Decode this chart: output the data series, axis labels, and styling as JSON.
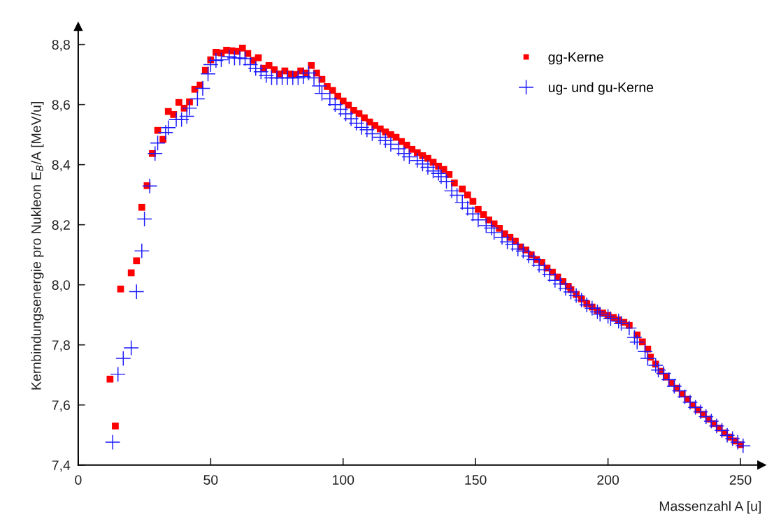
{
  "chart_data": {
    "type": "scatter",
    "xlabel": "Massenzahl A [u]",
    "ylabel": "Kernbindungsenergie pro Nukleon E$_{B}$/A [MeV/u]",
    "xlim": [
      0,
      258
    ],
    "ylim": [
      7.4,
      8.86
    ],
    "xticks": [
      0,
      50,
      100,
      150,
      200,
      250
    ],
    "yticks": [
      {
        "value": 7.4,
        "label": "7,4"
      },
      {
        "value": 7.6,
        "label": "7,6"
      },
      {
        "value": 7.8,
        "label": "7,8"
      },
      {
        "value": 8.0,
        "label": "8,0"
      },
      {
        "value": 8.2,
        "label": "8,2"
      },
      {
        "value": 8.4,
        "label": "8,4"
      },
      {
        "value": 8.6,
        "label": "8,6"
      },
      {
        "value": 8.8,
        "label": "8,8"
      }
    ],
    "grid": false,
    "legend": "top right",
    "series": [
      {
        "name": "gg-Kerne",
        "color": "#ff0000",
        "marker": "square",
        "x": [
          12,
          14,
          16,
          20,
          22,
          24,
          26,
          28,
          30,
          32,
          34,
          36,
          38,
          40,
          42,
          44,
          46,
          48,
          50,
          52,
          54,
          56,
          58,
          60,
          62,
          64,
          66,
          68,
          70,
          72,
          74,
          76,
          78,
          80,
          82,
          84,
          86,
          88,
          90,
          92,
          94,
          96,
          98,
          100,
          102,
          104,
          106,
          108,
          110,
          112,
          114,
          116,
          118,
          120,
          122,
          124,
          126,
          128,
          130,
          132,
          134,
          136,
          138,
          140,
          142,
          145,
          147,
          149,
          151,
          153,
          155,
          157,
          159,
          161,
          163,
          165,
          167,
          169,
          171,
          173,
          175,
          177,
          179,
          181,
          183,
          185,
          186,
          188,
          190,
          192,
          194,
          196,
          198,
          200,
          202,
          204,
          206,
          208,
          211,
          213,
          215,
          216,
          218,
          220,
          222,
          224,
          226,
          228,
          230,
          232,
          234,
          236,
          238,
          240,
          242,
          244,
          246,
          248,
          250
        ],
        "values": [
          7.686,
          7.53,
          7.986,
          8.04,
          8.08,
          8.258,
          8.33,
          8.437,
          8.514,
          8.484,
          8.577,
          8.567,
          8.607,
          8.588,
          8.609,
          8.651,
          8.665,
          8.714,
          8.749,
          8.774,
          8.772,
          8.781,
          8.779,
          8.777,
          8.788,
          8.77,
          8.747,
          8.756,
          8.721,
          8.73,
          8.716,
          8.702,
          8.712,
          8.702,
          8.7,
          8.712,
          8.705,
          8.73,
          8.705,
          8.684,
          8.66,
          8.647,
          8.628,
          8.612,
          8.598,
          8.581,
          8.57,
          8.556,
          8.542,
          8.53,
          8.519,
          8.509,
          8.5,
          8.491,
          8.477,
          8.465,
          8.451,
          8.44,
          8.43,
          8.421,
          8.408,
          8.395,
          8.384,
          8.367,
          8.339,
          8.319,
          8.299,
          8.278,
          8.251,
          8.234,
          8.216,
          8.203,
          8.188,
          8.17,
          8.158,
          8.145,
          8.126,
          8.116,
          8.1,
          8.084,
          8.074,
          8.056,
          8.042,
          8.026,
          8.011,
          7.995,
          7.984,
          7.968,
          7.953,
          7.937,
          7.926,
          7.914,
          7.906,
          7.898,
          7.891,
          7.883,
          7.875,
          7.865,
          7.833,
          7.81,
          7.786,
          7.759,
          7.736,
          7.712,
          7.693,
          7.674,
          7.656,
          7.637,
          7.619,
          7.6,
          7.584,
          7.569,
          7.553,
          7.538,
          7.523,
          7.507,
          7.493,
          7.48,
          7.468
        ]
      },
      {
        "name": "ug- und gu-Kerne",
        "color": "#1a1aff",
        "marker": "cross",
        "x": [
          13,
          15,
          17,
          20,
          22,
          24,
          25,
          27,
          29,
          30,
          33,
          34,
          37,
          39,
          41,
          42,
          45,
          47,
          49,
          50,
          52,
          54,
          57,
          59,
          61,
          63,
          65,
          67,
          69,
          71,
          73,
          75,
          77,
          79,
          81,
          83,
          85,
          87,
          89,
          91,
          92,
          95,
          97,
          99,
          101,
          103,
          105,
          107,
          109,
          111,
          114,
          116,
          118,
          121,
          123,
          125,
          128,
          130,
          132,
          134,
          136,
          137,
          139,
          141,
          143,
          145,
          147,
          149,
          151,
          154,
          156,
          157,
          160,
          162,
          164,
          166,
          168,
          170,
          172,
          174,
          176,
          178,
          180,
          182,
          184,
          186,
          188,
          190,
          192,
          194,
          196,
          197,
          200,
          201,
          204,
          205,
          208,
          210,
          211,
          214,
          215,
          218,
          219,
          221,
          223,
          225,
          227,
          229,
          231,
          233,
          235,
          237,
          239,
          241,
          243,
          245,
          247,
          249,
          251
        ],
        "values": [
          7.476,
          7.702,
          7.755,
          7.79,
          7.977,
          8.113,
          8.219,
          8.329,
          8.437,
          8.472,
          8.507,
          8.523,
          8.55,
          8.55,
          8.561,
          8.588,
          8.619,
          8.654,
          8.702,
          8.733,
          8.747,
          8.749,
          8.759,
          8.755,
          8.755,
          8.753,
          8.733,
          8.72,
          8.709,
          8.697,
          8.689,
          8.689,
          8.689,
          8.689,
          8.689,
          8.689,
          8.693,
          8.705,
          8.689,
          8.662,
          8.637,
          8.619,
          8.6,
          8.584,
          8.569,
          8.553,
          8.538,
          8.524,
          8.516,
          8.503,
          8.491,
          8.48,
          8.468,
          8.453,
          8.437,
          8.426,
          8.414,
          8.402,
          8.391,
          8.379,
          8.371,
          8.36,
          8.344,
          8.313,
          8.298,
          8.274,
          8.255,
          8.236,
          8.216,
          8.197,
          8.189,
          8.174,
          8.158,
          8.143,
          8.135,
          8.119,
          8.112,
          8.096,
          8.084,
          8.065,
          8.05,
          8.034,
          8.015,
          8.003,
          7.988,
          7.976,
          7.964,
          7.949,
          7.933,
          7.922,
          7.91,
          7.902,
          7.895,
          7.887,
          7.879,
          7.871,
          7.856,
          7.825,
          7.809,
          7.778,
          7.755,
          7.732,
          7.716,
          7.705,
          7.684,
          7.662,
          7.647,
          7.627,
          7.609,
          7.592,
          7.577,
          7.561,
          7.546,
          7.53,
          7.515,
          7.499,
          7.488,
          7.476,
          7.464
        ]
      }
    ]
  }
}
